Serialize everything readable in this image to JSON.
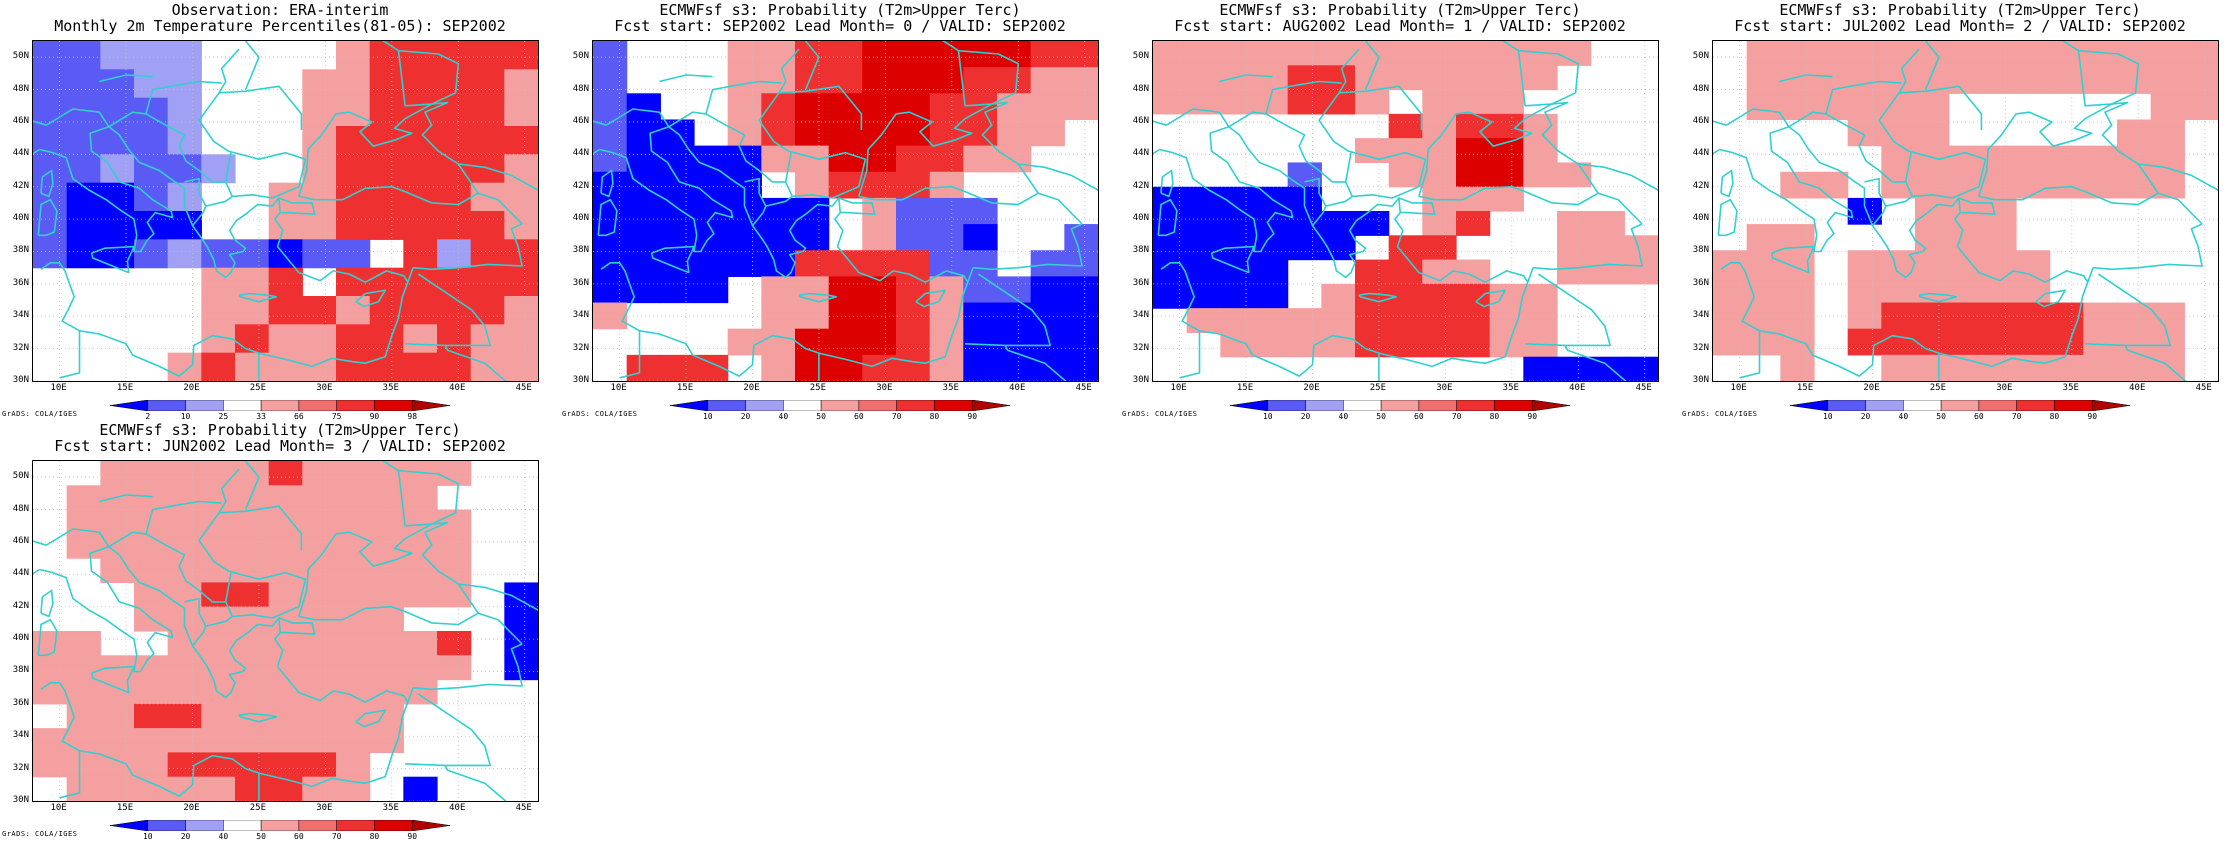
{
  "colors": {
    "deep_blue": "#0000ff",
    "mid_blue": "#5a5af5",
    "light_blue": "#a0a0f5",
    "white": "#ffffff",
    "light_red": "#f5a0a0",
    "pink_red": "#f07070",
    "mid_red": "#ee3030",
    "red": "#dd0000",
    "dark_red": "#b00000",
    "coast": "#30d0d0",
    "grid": "#c0c0c0"
  },
  "axes": {
    "lat_labels": [
      "50N",
      "48N",
      "46N",
      "44N",
      "42N",
      "40N",
      "38N",
      "36N",
      "34N",
      "32N",
      "30N"
    ],
    "lon_labels": [
      "10E",
      "15E",
      "20E",
      "25E",
      "30E",
      "35E",
      "40E",
      "45E"
    ],
    "credit": "GrADS: COLA/IGES"
  },
  "panels": [
    {
      "id": "obs",
      "title1": "Observation: ERA-interim",
      "title2": "Monthly 2m Temperature Percentiles(81-05): SEP2002",
      "colorbar_labels": [
        "2",
        "10",
        "25",
        "33",
        "66",
        "75",
        "90",
        "98"
      ],
      "grid": [
        "BBCCCWWWWRQQQQQ",
        "BBBCCWWWRRQQQQR",
        "BBBBCWWWRRQQQQR",
        "BBBBCWWWRQQQQQQ",
        "BBCBBCWWRQQQQQR",
        "BAABCWWRRQQQQRR",
        "BAAAAWWRRQQQQQR",
        "BAABCBBABBWQCQQ",
        "WWWWWRRQWQQQQQQ",
        "WWWWWRRQQRQQQQR",
        "WWWWWRQRRQQRQRR",
        "WWWWRQRRRQQQQRR"
      ]
    },
    {
      "id": "lead0",
      "title1": "ECMWFsf s3: Probability (T2m>Upper Terc)",
      "title2": "Fcst start: SEP2002   Lead Month= 0 / VALID: SEP2002",
      "colorbar_labels": [
        "10",
        "20",
        "40",
        "50",
        "60",
        "70",
        "80",
        "90"
      ],
      "grid": [
        "BWWWRRQQSSSSSQQ",
        "BWWWRRQQSSSQQRR",
        "BAWWRQSSSSQQRRR",
        "BAAWRQSSSSQQRRW",
        "BAAAARRSSQQRRWW",
        "AAAAAWRQQQRWWWW",
        "AAAAAAAWRBBBWWW",
        "AAAAAAAWRBBAWWB",
        "AAAAAAQQQQBBWBB",
        "AAAAWRRSSQRBBAA",
        "RWWWWRRSSQRAAAA",
        "WWWWRRSSSQRAAAA",
        "WQQQWRSSQQRAAAA"
      ]
    },
    {
      "id": "lead1",
      "title1": "ECMWFsf s3: Probability (T2m>Upper Terc)",
      "title2": "Fcst start: AUG2002   Lead Month= 1 / VALID: SEP2002",
      "colorbar_labels": [
        "10",
        "20",
        "40",
        "50",
        "60",
        "70",
        "80",
        "90"
      ],
      "grid": [
        "RRRRRRRRRRRRRWW",
        "RRRRQQRRRRRRWWW",
        "RRRRQQRWRRRWWWW",
        "WWWWWWWQRQQRWWW",
        "WWWWWWRRRSSRWWW",
        "WWWWBWWRRSSRRWW",
        "AAAAAWWWRRRWWWW",
        "AAAAAAAWRQWWRRW",
        "AAAAAAWQQWWWRRR",
        "AAAAWWQQRRWWRRR",
        "AAAAWRQQQQRRWWW",
        "WRRRRRQQQQRRWWW",
        "WWRRRRQQQQRRWWW",
        "WWWWWWWWWWWAAAA"
      ]
    },
    {
      "id": "lead2",
      "title1": "ECMWFsf s3: Probability (T2m>Upper Terc)",
      "title2": "Fcst start: JUL2002   Lead Month= 2 / VALID: SEP2002",
      "colorbar_labels": [
        "10",
        "20",
        "40",
        "50",
        "60",
        "70",
        "80",
        "90"
      ],
      "grid": [
        "WRRRRRRRRRRRRRR",
        "WRRRRRRRRRRRRRR",
        "WRRRRRRWWWWWWRR",
        "WWWWRRRWWWWWRRW",
        "WWWWWRRRRRRRRRW",
        "WWRRWRRRRRRRRRW",
        "WWWWAWRRRWWWWWW",
        "WRRWWWRRRWWWWWW",
        "RRRWRRRRRRWWWWW",
        "RRRWRRRRRRWWWWW",
        "RRRWRQQQQQQRRRW",
        "RRRWQQQQQQQRRRW",
        "WWRWWRRRRRRRRRW"
      ]
    },
    {
      "id": "lead3",
      "title1": "ECMWFsf s3: Probability (T2m>Upper Terc)",
      "title2": "Fcst start: JUN2002   Lead Month= 3 / VALID: SEP2002",
      "colorbar_labels": [
        "10",
        "20",
        "40",
        "50",
        "60",
        "70",
        "80",
        "90"
      ],
      "grid": [
        "WWRRRRRQRRRRRWW",
        "WRRRRRRRRRRRWWW",
        "WRRRRRRRRRRRRWW",
        "WRRRRRRRRRRRRWW",
        "WWRRRRRRRRRRRWW",
        "WWWRRQQRRRRRRWA",
        "WWWRRRRRRRRWWWA",
        "RRWWRRRRRRRRQWA",
        "RRRRRRRRRRRRRWA",
        "RRRRRRRRRRRRWWW",
        "WRRQQRRRRRRWWWW",
        "RRRRRRRRRRRWWWW",
        "RRRRQQQQQRWWWWW",
        "WRRRRRQQRRWAWWW"
      ]
    }
  ]
}
